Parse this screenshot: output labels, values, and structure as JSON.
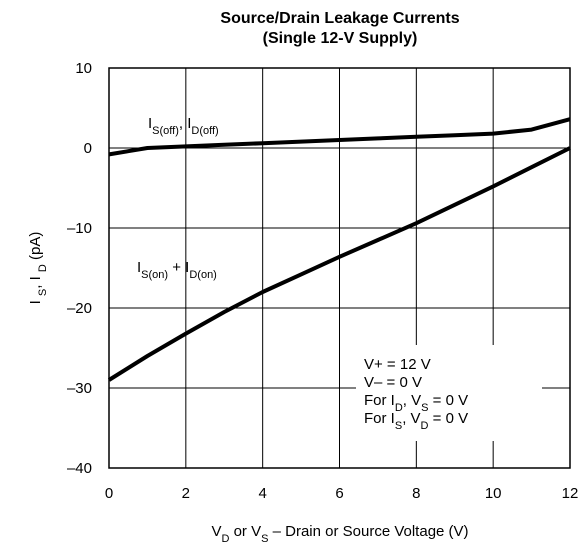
{
  "chart_data": {
    "type": "line",
    "title": [
      "Source/Drain Leakage Currents",
      "(Single 12-V Supply)"
    ],
    "x_label": [
      {
        "text": "V"
      },
      {
        "text": "D",
        "sub": true
      },
      {
        "text": " or V"
      },
      {
        "text": "S",
        "sub": true
      },
      {
        "text": " – Drain or Source Voltage (V)"
      }
    ],
    "y_label": [
      {
        "text": "I "
      },
      {
        "text": "S",
        "sub": true
      },
      {
        "text": ", I "
      },
      {
        "text": "D",
        "sub": true
      },
      {
        "text": " (pA)"
      }
    ],
    "x": [
      0,
      1,
      2,
      3,
      4,
      5,
      6,
      7,
      8,
      9,
      10,
      11,
      12
    ],
    "series": [
      {
        "name": [
          {
            "text": "I"
          },
          {
            "text": "S(off)",
            "sub": true
          },
          {
            "text": ", I"
          },
          {
            "text": "D(off)",
            "sub": true
          }
        ],
        "color": "#000000",
        "values": [
          -0.8,
          0.0,
          0.2,
          0.4,
          0.6,
          0.8,
          1.0,
          1.2,
          1.4,
          1.6,
          1.8,
          2.3,
          3.6
        ]
      },
      {
        "name": [
          {
            "text": "I"
          },
          {
            "text": "S(on)",
            "sub": true
          },
          {
            "text": " + I"
          },
          {
            "text": "D(on)",
            "sub": true
          }
        ],
        "color": "#000000",
        "values": [
          -29,
          -26,
          -23.2,
          -20.5,
          -18,
          -15.8,
          -13.6,
          -11.5,
          -9.4,
          -7.1,
          -4.8,
          -2.4,
          0
        ]
      }
    ],
    "xlim": [
      0,
      12
    ],
    "xticks": [
      0,
      2,
      4,
      6,
      8,
      10,
      12
    ],
    "ylim": [
      -40,
      10
    ],
    "yticks": [
      10,
      0,
      {
        "value": -10,
        "label": "–10"
      },
      {
        "value": -20,
        "label": "–20"
      },
      {
        "value": -30,
        "label": "–30"
      },
      {
        "value": -40,
        "label": "–40"
      }
    ],
    "grid": true,
    "annotation": [
      [
        {
          "text": "V+ = 12 V"
        }
      ],
      [
        {
          "text": "V– = 0 V"
        }
      ],
      [
        {
          "text": "For I"
        },
        {
          "text": "D",
          "sub": true
        },
        {
          "text": ", V"
        },
        {
          "text": "S",
          "sub": true
        },
        {
          "text": " = 0 V"
        }
      ],
      [
        {
          "text": "For I"
        },
        {
          "text": "S",
          "sub": true
        },
        {
          "text": ", V"
        },
        {
          "text": "D",
          "sub": true
        },
        {
          "text": " = 0 V"
        }
      ]
    ]
  }
}
